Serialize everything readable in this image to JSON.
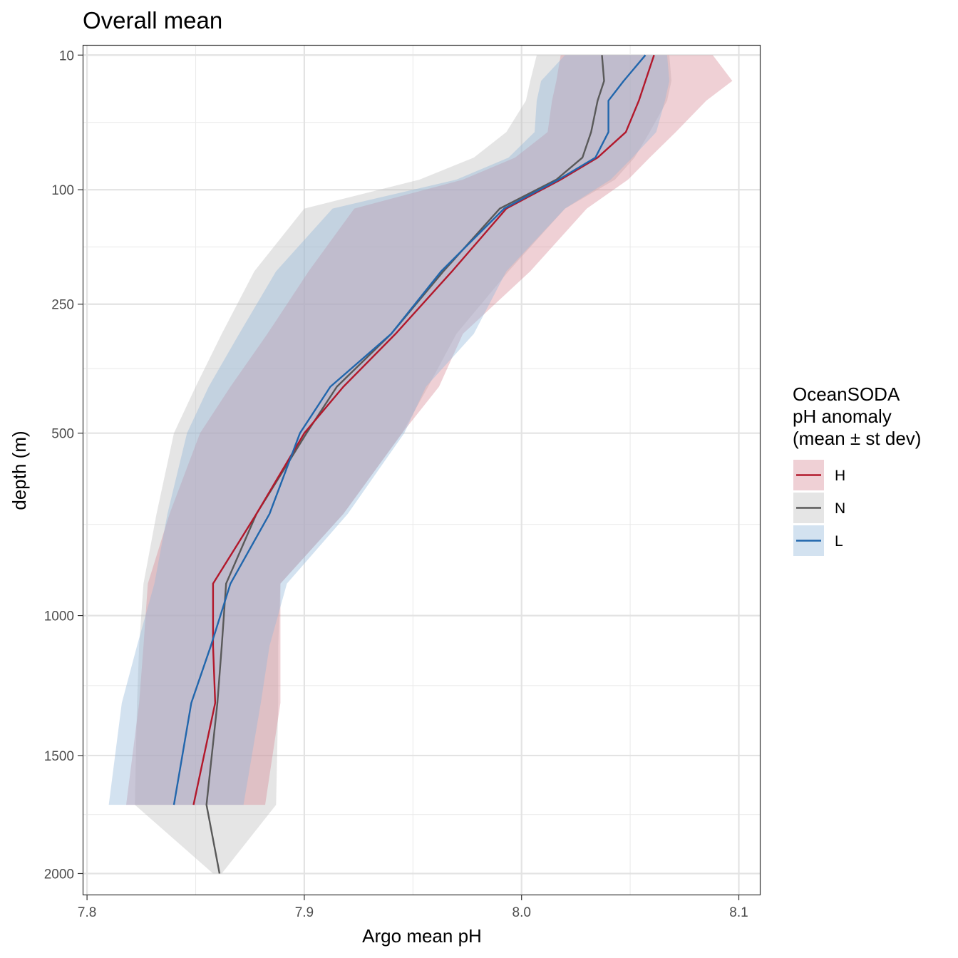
{
  "chart_data": {
    "type": "line",
    "title": "Overall mean",
    "xlabel": "Argo mean pH",
    "ylabel": "depth (m)",
    "xlim": [
      7.798,
      8.11
    ],
    "ylim": [
      2100,
      7
    ],
    "y_scale": "sqrt-reversed",
    "x_ticks": [
      "7.8",
      "7.9",
      "8.0",
      "8.1"
    ],
    "x_tick_values": [
      7.8,
      7.9,
      8.0,
      8.1
    ],
    "y_ticks": [
      "10",
      "100",
      "250",
      "500",
      "1000",
      "1500",
      "2000"
    ],
    "y_tick_values": [
      10,
      100,
      250,
      500,
      1000,
      1500,
      2000
    ],
    "grid": true,
    "legend": {
      "title_lines": [
        "OceanSODA",
        "pH anomaly",
        "(mean ± st dev)"
      ],
      "placement": "right"
    },
    "series": [
      {
        "name": "H",
        "color": "#b2182b",
        "band_color": "#d68a96",
        "depth": [
          10,
          20,
          30,
          50,
          70,
          90,
          120,
          200,
          300,
          400,
          500,
          700,
          900,
          1100,
          1300,
          1700
        ],
        "mean": [
          8.061,
          8.057,
          8.054,
          8.048,
          8.035,
          8.018,
          7.993,
          7.968,
          7.942,
          7.918,
          7.9,
          7.878,
          7.858,
          7.858,
          7.859,
          7.849
        ],
        "lower": [
          8.018,
          8.016,
          8.014,
          8.012,
          7.997,
          7.973,
          7.923,
          7.902,
          7.883,
          7.866,
          7.852,
          7.838,
          7.828,
          7.826,
          7.824,
          7.818
        ],
        "upper": [
          8.088,
          8.097,
          8.085,
          8.071,
          8.059,
          8.049,
          8.03,
          8.004,
          7.973,
          7.962,
          7.945,
          7.918,
          7.889,
          7.889,
          7.889,
          7.882
        ]
      },
      {
        "name": "N",
        "color": "#595959",
        "band_color": "#bfbfbf",
        "depth": [
          10,
          20,
          30,
          50,
          70,
          90,
          120,
          200,
          300,
          400,
          500,
          700,
          900,
          1100,
          1300,
          1700,
          2000
        ],
        "mean": [
          8.037,
          8.038,
          8.035,
          8.032,
          8.028,
          8.016,
          7.99,
          7.964,
          7.94,
          7.915,
          7.901,
          7.878,
          7.864,
          7.862,
          7.86,
          7.855,
          7.861
        ],
        "lower": [
          8.007,
          8.004,
          8.002,
          7.993,
          7.978,
          7.953,
          7.9,
          7.877,
          7.862,
          7.85,
          7.84,
          7.832,
          7.826,
          7.824,
          7.823,
          7.822,
          7.858
        ],
        "upper": [
          8.068,
          8.069,
          8.067,
          8.059,
          8.052,
          8.043,
          8.02,
          7.994,
          7.97,
          7.957,
          7.945,
          7.918,
          7.889,
          7.888,
          7.888,
          7.887,
          7.862
        ]
      },
      {
        "name": "L",
        "color": "#2166ac",
        "band_color": "#92b6d9",
        "depth": [
          10,
          20,
          30,
          50,
          70,
          90,
          120,
          200,
          300,
          400,
          500,
          700,
          900,
          1100,
          1300,
          1700
        ],
        "mean": [
          8.057,
          8.047,
          8.04,
          8.04,
          8.034,
          8.017,
          7.992,
          7.963,
          7.94,
          7.912,
          7.898,
          7.884,
          7.866,
          7.857,
          7.848,
          7.84
        ],
        "lower": [
          8.02,
          8.009,
          8.007,
          8.006,
          7.994,
          7.97,
          7.913,
          7.887,
          7.87,
          7.856,
          7.846,
          7.837,
          7.831,
          7.823,
          7.816,
          7.81
        ],
        "upper": [
          8.067,
          8.068,
          8.066,
          8.062,
          8.051,
          8.041,
          8.02,
          7.993,
          7.978,
          7.956,
          7.946,
          7.92,
          7.892,
          7.884,
          7.88,
          7.872
        ]
      }
    ]
  }
}
